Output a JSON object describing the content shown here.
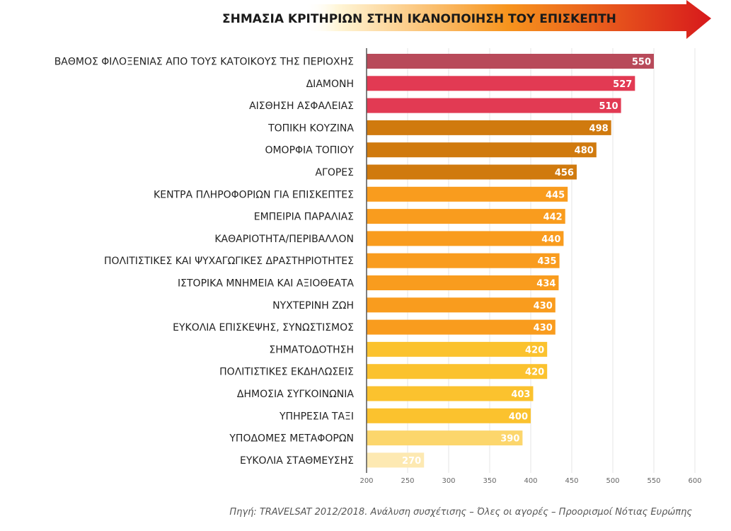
{
  "chart_data": {
    "type": "bar",
    "orientation": "horizontal",
    "title": "ΣΗΜΑΣΙΑ ΚΡΙΤΗΡΙΩΝ ΣΤΗΝ ΙΚΑΝΟΠΟΙΗΣΗ ΤΟΥ  ΕΠΙΣΚΕΠΤΗ",
    "xlabel": "",
    "ylabel": "",
    "xlim": [
      200,
      600
    ],
    "xticks": [
      200,
      250,
      300,
      350,
      400,
      450,
      500,
      550,
      600
    ],
    "grid": true,
    "legend": "none",
    "categories": [
      "ΒΑΘΜΟΣ ΦΙΛΟΞΕΝΙΑΣ ΑΠΟ ΤΟΥΣ ΚΑΤΟΙΚΟΥΣ ΤΗΣ ΠΕΡΙΟΧΗΣ",
      "ΔΙΑΜΟΝΗ",
      "ΑΙΣΘΗΣΗ ΑΣΦΑΛΕΙΑΣ",
      "ΤΟΠΙΚΗ ΚΟΥΖΙΝΑ",
      "ΟΜΟΡΦΙΑ ΤΟΠΙΟΥ",
      "ΑΓΟΡΕΣ",
      "ΚΕΝΤΡΑ ΠΛΗΡΟΦΟΡΙΩΝ ΓΙΑ ΕΠΙΣΚΕΠΤΕΣ",
      "ΕΜΠΕΙΡΙΑ ΠΑΡΑΛΙΑΣ",
      "ΚΑΘΑΡΙΟΤΗΤΑ/ΠΕΡΙΒΑΛΛΟΝ",
      "ΠΟΛΙΤΙΣΤΙΚΕΣ ΚΑΙ ΨΥΧΑΓΩΓΙΚΕΣ ΔΡΑΣΤΗΡΙΟΤΗΤΕΣ",
      "ΙΣΤΟΡΙΚΑ ΜΝΗΜΕΙΑ ΚΑΙ ΑΞΙΟΘΕΑΤΑ",
      "ΝΥΧΤΕΡΙΝΗ ΖΩΗ",
      "ΕΥΚΟΛΙΑ ΕΠΙΣΚΕΨΗΣ, ΣΥΝΩΣΤΙΣΜΟΣ",
      "ΣΗΜΑΤΟΔΟΤΗΣΗ",
      "ΠΟΛΙΤΙΣΤΙΚΕΣ ΕΚΔΗΛΩΣΕΙΣ",
      "ΔΗΜΟΣΙΑ ΣΥΓΚΟΙΝΩΝΙΑ",
      "ΥΠΗΡΕΣΙΑ ΤΑΞΙ",
      "ΥΠΟΔΟΜΕΣ ΜΕΤΑΦΟΡΩΝ",
      "ΕΥΚΟΛΙΑ ΣΤΑΘΜΕΥΣΗΣ"
    ],
    "values": [
      550,
      527,
      510,
      498,
      480,
      456,
      445,
      442,
      440,
      435,
      434,
      430,
      430,
      420,
      420,
      403,
      400,
      390,
      270
    ],
    "colors": [
      "#B84A5A",
      "#E23A53",
      "#E23A53",
      "#D07A0E",
      "#D07A0E",
      "#D07A0E",
      "#F99C1E",
      "#F99C1E",
      "#F99C1E",
      "#F99C1E",
      "#F99C1E",
      "#F99C1E",
      "#F99C1E",
      "#FBC22E",
      "#FBC22E",
      "#FBC22E",
      "#FBC22E",
      "#FCD66C",
      "#FDE9B2"
    ],
    "source": "Πηγή: TRAVELSAT 2012/2018. Ανάλυση συσχέτισης – Όλες οι αγορές – Προορισμοί Νότιας Ευρώπης"
  },
  "colors": {
    "arrow_start": "#FFF6D8",
    "arrow_mid": "#F7941D",
    "arrow_end": "#D7191C",
    "gridline": "#E6E6E6",
    "axis": "#555555"
  }
}
